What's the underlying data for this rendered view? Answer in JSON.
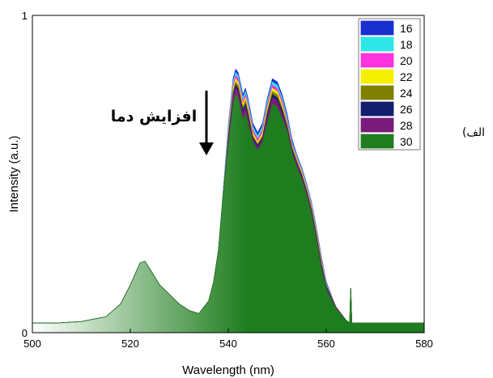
{
  "chart_data": {
    "type": "area",
    "title": "",
    "xlabel": "Wavelength (nm)",
    "ylabel": "Intensity (a.u.)",
    "xlim": [
      500,
      580
    ],
    "ylim": [
      0,
      1
    ],
    "x_ticks": [
      "500",
      "520",
      "540",
      "560",
      "580"
    ],
    "y_ticks": [
      "0",
      "1"
    ],
    "legend_position": "top-right",
    "annotation": "افزایش دما",
    "panel_label": "الف)",
    "x": [
      500,
      505,
      510,
      515,
      518,
      520,
      522,
      523,
      524,
      526,
      528,
      530,
      532,
      534,
      536,
      537,
      538,
      539,
      540,
      541,
      541.5,
      542,
      543,
      543.5,
      544,
      545,
      546,
      547,
      548,
      549,
      550,
      551,
      552,
      553,
      554,
      555,
      556,
      557,
      558,
      559,
      560,
      562,
      564,
      564.8,
      565,
      565.2,
      566,
      570,
      575,
      580
    ],
    "series": [
      {
        "name": "16",
        "color": "#1a2fd0",
        "values": [
          0.03,
          0.03,
          0.035,
          0.05,
          0.09,
          0.15,
          0.22,
          0.225,
          0.2,
          0.15,
          0.12,
          0.09,
          0.07,
          0.06,
          0.1,
          0.16,
          0.26,
          0.45,
          0.65,
          0.8,
          0.83,
          0.82,
          0.75,
          0.77,
          0.74,
          0.66,
          0.63,
          0.66,
          0.74,
          0.8,
          0.79,
          0.75,
          0.69,
          0.61,
          0.56,
          0.52,
          0.47,
          0.41,
          0.33,
          0.24,
          0.16,
          0.08,
          0.04,
          0.03,
          0.14,
          0.03,
          0.03,
          0.03,
          0.03,
          0.03
        ]
      },
      {
        "name": "18",
        "color": "#2ee6e6",
        "values": [
          0.03,
          0.03,
          0.035,
          0.05,
          0.09,
          0.15,
          0.22,
          0.225,
          0.2,
          0.15,
          0.12,
          0.09,
          0.07,
          0.06,
          0.1,
          0.16,
          0.26,
          0.45,
          0.64,
          0.79,
          0.82,
          0.81,
          0.74,
          0.76,
          0.73,
          0.65,
          0.62,
          0.65,
          0.73,
          0.79,
          0.78,
          0.74,
          0.68,
          0.6,
          0.555,
          0.515,
          0.465,
          0.405,
          0.325,
          0.235,
          0.155,
          0.08,
          0.04,
          0.03,
          0.14,
          0.03,
          0.03,
          0.03,
          0.03,
          0.03
        ]
      },
      {
        "name": "20",
        "color": "#ff33dd",
        "values": [
          0.03,
          0.03,
          0.035,
          0.05,
          0.09,
          0.15,
          0.22,
          0.225,
          0.2,
          0.15,
          0.12,
          0.09,
          0.07,
          0.06,
          0.1,
          0.16,
          0.26,
          0.44,
          0.63,
          0.78,
          0.81,
          0.8,
          0.73,
          0.75,
          0.72,
          0.64,
          0.61,
          0.64,
          0.72,
          0.78,
          0.77,
          0.73,
          0.67,
          0.595,
          0.55,
          0.51,
          0.46,
          0.4,
          0.32,
          0.23,
          0.15,
          0.08,
          0.04,
          0.03,
          0.14,
          0.03,
          0.03,
          0.03,
          0.03,
          0.03
        ]
      },
      {
        "name": "22",
        "color": "#f5f000",
        "values": [
          0.03,
          0.03,
          0.035,
          0.05,
          0.09,
          0.15,
          0.22,
          0.225,
          0.2,
          0.15,
          0.12,
          0.09,
          0.07,
          0.06,
          0.1,
          0.16,
          0.26,
          0.44,
          0.62,
          0.77,
          0.8,
          0.79,
          0.72,
          0.74,
          0.71,
          0.63,
          0.6,
          0.63,
          0.71,
          0.77,
          0.76,
          0.72,
          0.66,
          0.59,
          0.545,
          0.505,
          0.455,
          0.395,
          0.315,
          0.225,
          0.15,
          0.08,
          0.04,
          0.03,
          0.14,
          0.03,
          0.03,
          0.03,
          0.03,
          0.03
        ]
      },
      {
        "name": "24",
        "color": "#808000",
        "values": [
          0.03,
          0.03,
          0.035,
          0.05,
          0.09,
          0.15,
          0.22,
          0.225,
          0.2,
          0.15,
          0.12,
          0.09,
          0.07,
          0.06,
          0.1,
          0.16,
          0.26,
          0.44,
          0.615,
          0.76,
          0.79,
          0.78,
          0.71,
          0.73,
          0.7,
          0.62,
          0.595,
          0.62,
          0.7,
          0.76,
          0.75,
          0.71,
          0.655,
          0.585,
          0.54,
          0.5,
          0.45,
          0.39,
          0.31,
          0.22,
          0.15,
          0.08,
          0.04,
          0.03,
          0.14,
          0.03,
          0.03,
          0.03,
          0.03,
          0.03
        ]
      },
      {
        "name": "26",
        "color": "#141e6e",
        "values": [
          0.03,
          0.03,
          0.035,
          0.05,
          0.09,
          0.15,
          0.22,
          0.225,
          0.2,
          0.15,
          0.12,
          0.09,
          0.07,
          0.06,
          0.1,
          0.16,
          0.26,
          0.44,
          0.61,
          0.75,
          0.78,
          0.77,
          0.7,
          0.72,
          0.69,
          0.615,
          0.59,
          0.615,
          0.69,
          0.75,
          0.74,
          0.7,
          0.65,
          0.58,
          0.535,
          0.495,
          0.445,
          0.385,
          0.305,
          0.215,
          0.145,
          0.08,
          0.04,
          0.03,
          0.14,
          0.03,
          0.03,
          0.03,
          0.03,
          0.03
        ]
      },
      {
        "name": "28",
        "color": "#7a1a7a",
        "values": [
          0.03,
          0.03,
          0.035,
          0.05,
          0.09,
          0.15,
          0.22,
          0.225,
          0.2,
          0.15,
          0.12,
          0.09,
          0.07,
          0.06,
          0.1,
          0.16,
          0.26,
          0.44,
          0.6,
          0.74,
          0.77,
          0.76,
          0.69,
          0.71,
          0.68,
          0.61,
          0.585,
          0.61,
          0.68,
          0.74,
          0.73,
          0.69,
          0.645,
          0.575,
          0.53,
          0.49,
          0.44,
          0.38,
          0.3,
          0.21,
          0.14,
          0.08,
          0.04,
          0.03,
          0.14,
          0.03,
          0.03,
          0.03,
          0.03,
          0.03
        ]
      },
      {
        "name": "30",
        "color": "#1e7d1e",
        "values": [
          0.03,
          0.03,
          0.035,
          0.05,
          0.09,
          0.15,
          0.22,
          0.225,
          0.2,
          0.15,
          0.12,
          0.09,
          0.07,
          0.06,
          0.1,
          0.16,
          0.26,
          0.44,
          0.59,
          0.72,
          0.75,
          0.74,
          0.67,
          0.69,
          0.66,
          0.6,
          0.575,
          0.6,
          0.66,
          0.72,
          0.71,
          0.675,
          0.635,
          0.565,
          0.52,
          0.48,
          0.43,
          0.37,
          0.29,
          0.2,
          0.135,
          0.075,
          0.04,
          0.03,
          0.14,
          0.03,
          0.03,
          0.03,
          0.03,
          0.03
        ]
      }
    ]
  }
}
